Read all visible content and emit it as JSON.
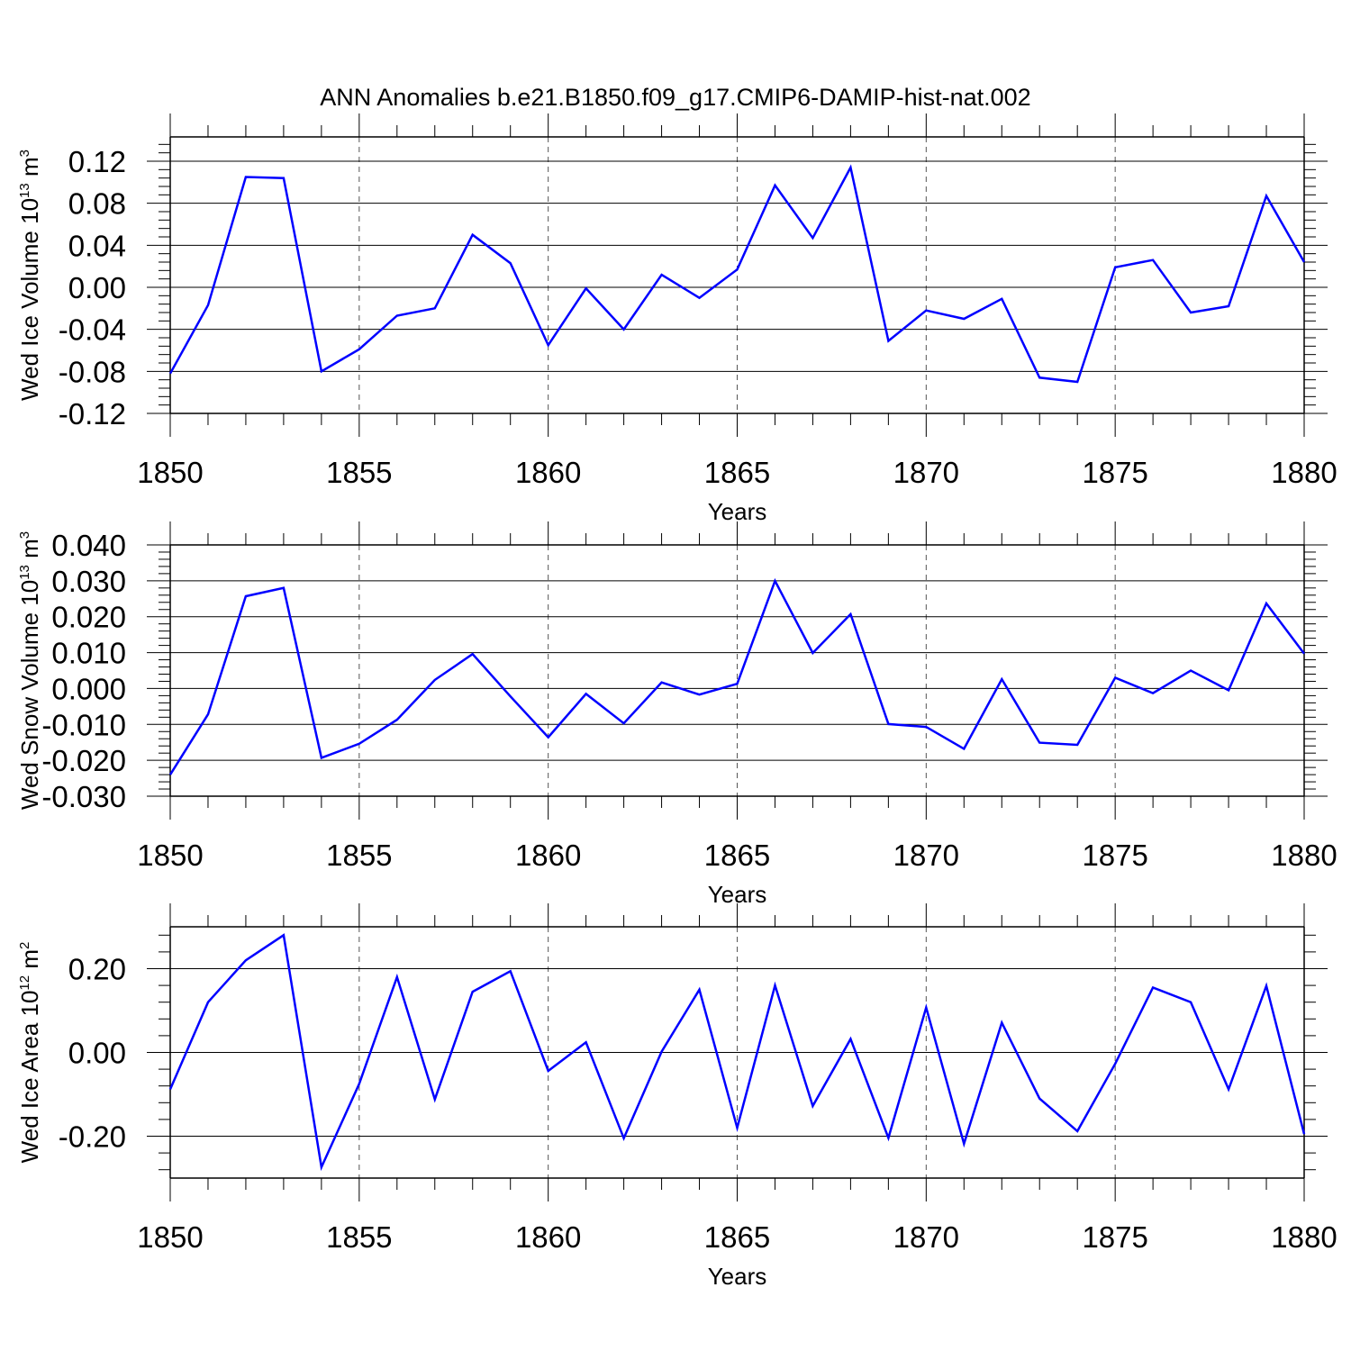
{
  "figure_title": "ANN Anomalies b.e21.B1850.f09_g17.CMIP6-DAMIP-hist-nat.002",
  "line_color": "#0000ff",
  "chart_data": [
    {
      "type": "line",
      "title": "",
      "ylabel": {
        "text": "Wed Ice Volume 10",
        "exponent": "13",
        "unit": "m",
        "unit_exp": "3"
      },
      "xlabel": "Years",
      "xlim": [
        1850,
        1880
      ],
      "ylim": [
        -0.12,
        0.12
      ],
      "xticks": [
        "1850",
        "1855",
        "1860",
        "1865",
        "1870",
        "1875",
        "1880"
      ],
      "xtick_values": [
        1850,
        1855,
        1860,
        1865,
        1870,
        1875,
        1880
      ],
      "yticks": [
        "-0.12",
        "-0.08",
        "-0.04",
        "0.00",
        "0.04",
        "0.08",
        "0.12"
      ],
      "ytick_values": [
        -0.12,
        -0.08,
        -0.04,
        0.0,
        0.04,
        0.08,
        0.12
      ],
      "y_minor_step": 0.008,
      "grid": "vertical dashed at major x ticks",
      "x": [
        1850,
        1851,
        1852,
        1853,
        1854,
        1855,
        1856,
        1857,
        1858,
        1859,
        1860,
        1861,
        1862,
        1863,
        1864,
        1865,
        1866,
        1867,
        1868,
        1869,
        1870,
        1871,
        1872,
        1873,
        1874,
        1875,
        1876,
        1877,
        1878,
        1879,
        1880
      ],
      "series": [
        {
          "values": [
            -0.082,
            -0.017,
            0.105,
            0.104,
            -0.08,
            -0.059,
            -0.027,
            -0.02,
            0.05,
            0.023,
            -0.055,
            -0.001,
            -0.04,
            0.012,
            -0.01,
            0.017,
            0.097,
            0.047,
            0.114,
            -0.051,
            -0.022,
            -0.03,
            -0.011,
            -0.086,
            -0.09,
            0.019,
            0.026,
            -0.024,
            -0.018,
            0.087,
            0.024
          ]
        }
      ]
    },
    {
      "type": "line",
      "title": "",
      "ylabel": {
        "text": "Wed Snow Volume 10",
        "exponent": "13",
        "unit": "m",
        "unit_exp": "3"
      },
      "xlabel": "Years",
      "xlim": [
        1850,
        1880
      ],
      "ylim": [
        -0.03,
        0.04
      ],
      "xticks": [
        "1850",
        "1855",
        "1860",
        "1865",
        "1870",
        "1875",
        "1880"
      ],
      "xtick_values": [
        1850,
        1855,
        1860,
        1865,
        1870,
        1875,
        1880
      ],
      "yticks": [
        "-0.030",
        "-0.020",
        "-0.010",
        "0.000",
        "0.010",
        "0.020",
        "0.030",
        "0.040"
      ],
      "ytick_values": [
        -0.03,
        -0.02,
        -0.01,
        0.0,
        0.01,
        0.02,
        0.03,
        0.04
      ],
      "y_minor_step": 0.002,
      "grid": "vertical dashed at major x ticks",
      "x": [
        1850,
        1851,
        1852,
        1853,
        1854,
        1855,
        1856,
        1857,
        1858,
        1859,
        1860,
        1861,
        1862,
        1863,
        1864,
        1865,
        1866,
        1867,
        1868,
        1869,
        1870,
        1871,
        1872,
        1873,
        1874,
        1875,
        1876,
        1877,
        1878,
        1879,
        1880
      ],
      "series": [
        {
          "values": [
            -0.024,
            -0.0072,
            0.0257,
            0.028,
            -0.0193,
            -0.0154,
            -0.0087,
            0.0024,
            0.0096,
            -0.0022,
            -0.0136,
            -0.0015,
            -0.0097,
            0.0017,
            -0.0017,
            0.0013,
            0.03,
            0.0099,
            0.0207,
            -0.0099,
            -0.0107,
            -0.0168,
            0.0026,
            -0.0151,
            -0.0157,
            0.003,
            -0.0013,
            0.005,
            -0.0005,
            0.0237,
            0.0097
          ]
        }
      ]
    },
    {
      "type": "line",
      "title": "",
      "ylabel": {
        "text": "Wed Ice Area 10",
        "exponent": "12",
        "unit": "m",
        "unit_exp": "2"
      },
      "xlabel": "Years",
      "xlim": [
        1850,
        1880
      ],
      "ylim": [
        -0.3,
        0.3
      ],
      "xticks": [
        "1850",
        "1855",
        "1860",
        "1865",
        "1870",
        "1875",
        "1880"
      ],
      "xtick_values": [
        1850,
        1855,
        1860,
        1865,
        1870,
        1875,
        1880
      ],
      "yticks": [
        "-0.20",
        "0.00",
        "0.20"
      ],
      "ytick_values": [
        -0.2,
        0.0,
        0.2
      ],
      "y_minor_step": 0.04,
      "grid": "vertical dashed at major x ticks",
      "x": [
        1850,
        1851,
        1852,
        1853,
        1854,
        1855,
        1856,
        1857,
        1858,
        1859,
        1860,
        1861,
        1862,
        1863,
        1864,
        1865,
        1866,
        1867,
        1868,
        1869,
        1870,
        1871,
        1872,
        1873,
        1874,
        1875,
        1876,
        1877,
        1878,
        1879,
        1880
      ],
      "series": [
        {
          "values": [
            -0.088,
            0.12,
            0.22,
            0.28,
            -0.274,
            -0.075,
            0.18,
            -0.112,
            0.145,
            0.194,
            -0.044,
            0.024,
            -0.205,
            0.002,
            0.15,
            -0.18,
            0.16,
            -0.128,
            0.032,
            -0.204,
            0.107,
            -0.218,
            0.071,
            -0.11,
            -0.188,
            -0.027,
            0.155,
            0.12,
            -0.088,
            0.159,
            -0.195
          ]
        }
      ]
    }
  ]
}
